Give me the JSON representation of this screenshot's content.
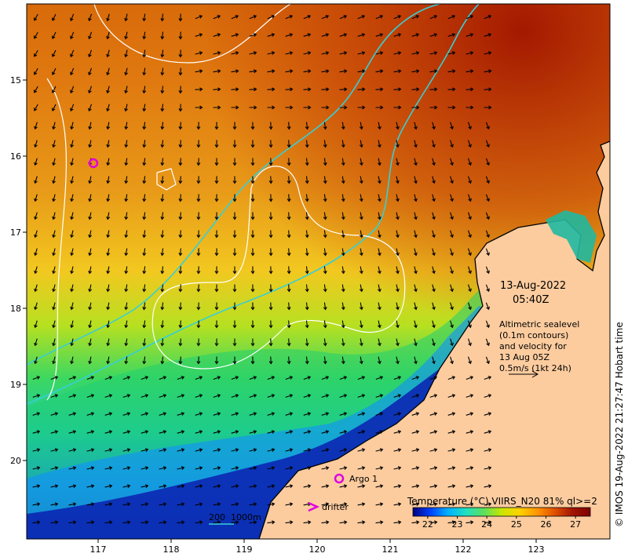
{
  "map": {
    "lon_ticks": [
      "117",
      "118",
      "119",
      "120",
      "121",
      "122",
      "123"
    ],
    "lat_ticks": [
      "15",
      "16",
      "17",
      "18",
      "19",
      "20"
    ],
    "time": {
      "date": "13-Aug-2022",
      "clock": "05:40Z"
    },
    "velocity_note": {
      "line1": "Altimetric sealevel",
      "line2": "(0.1m contours)",
      "line3": "and velocity for",
      "line4": "13 Aug 05Z",
      "line5": "0.5m/s (1kt 24h)"
    },
    "legend": {
      "argo": "Argo 1",
      "drifter": "drifter",
      "depth": "200  1000m"
    },
    "colorbar": {
      "title": "Temperature (°C) VIIRS_N20 81% ql>=2",
      "ticks": [
        "22",
        "23",
        "24",
        "25",
        "26",
        "27"
      ],
      "range": [
        21.5,
        27.5
      ],
      "colors": [
        "#00007f",
        "#0040ff",
        "#00b4ff",
        "#20e0c0",
        "#5ce05c",
        "#c8e600",
        "#ffd200",
        "#ff9600",
        "#e05000",
        "#a01400",
        "#800000"
      ]
    },
    "credit": "© IMOS 19-Aug-2022 21:27:47 Hobart time",
    "palette": {
      "land": "#fccc9f",
      "isobath": "#37cfd6",
      "contour": "#ffffff",
      "argo": "#e000e0"
    },
    "icons": [
      "argo-float-icon",
      "drifter-icon",
      "velocity-arrow-icon"
    ]
  }
}
